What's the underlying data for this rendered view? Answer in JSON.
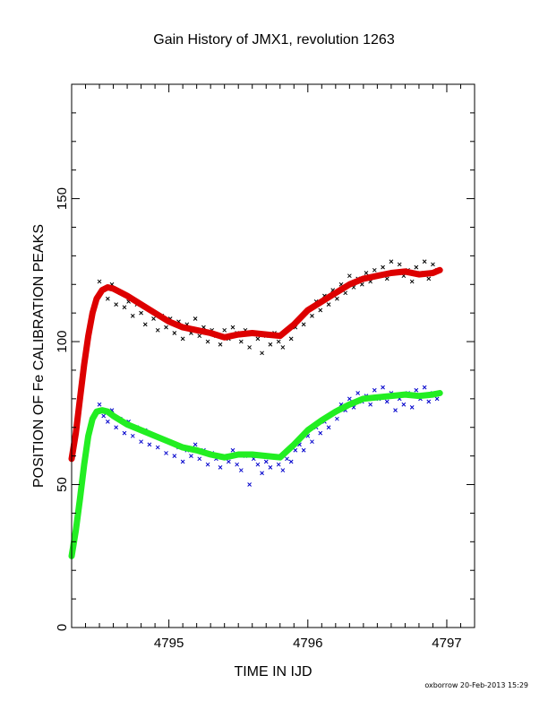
{
  "chart_data": {
    "type": "scatter",
    "title": "Gain History of JMX1, revolution 1263",
    "xlabel": "TIME IN IJD",
    "ylabel": "POSITION OF Fe CALIBRATION PEAKS",
    "xlim": [
      4794.3,
      4797.2
    ],
    "ylim": [
      0,
      190
    ],
    "xticks": [
      4795,
      4796,
      4797
    ],
    "yticks": [
      0,
      50,
      100,
      150
    ],
    "grid": false,
    "series": [
      {
        "color": "#000000",
        "marker": "x",
        "x": [
          4794.5,
          4794.53,
          4794.56,
          4794.59,
          4794.62,
          4794.65,
          4794.68,
          4794.71,
          4794.74,
          4794.77,
          4794.8,
          4794.83,
          4794.86,
          4794.89,
          4794.92,
          4794.95,
          4794.98,
          4795.01,
          4795.04,
          4795.07,
          4795.1,
          4795.13,
          4795.16,
          4795.19,
          4795.22,
          4795.25,
          4795.28,
          4795.31,
          4795.34,
          4795.37,
          4795.4,
          4795.43,
          4795.46,
          4795.49,
          4795.52,
          4795.55,
          4795.58,
          4795.61,
          4795.64,
          4795.67,
          4795.7,
          4795.73,
          4795.76,
          4795.79,
          4795.82,
          4795.85,
          4795.88,
          4795.91,
          4795.94,
          4795.97,
          4796.0,
          4796.03,
          4796.06,
          4796.09,
          4796.12,
          4796.15,
          4796.18,
          4796.21,
          4796.24,
          4796.27,
          4796.3,
          4796.33,
          4796.36,
          4796.39,
          4796.42,
          4796.45,
          4796.48,
          4796.51,
          4796.54,
          4796.57,
          4796.6,
          4796.63,
          4796.66,
          4796.69,
          4796.72,
          4796.75,
          4796.78,
          4796.81,
          4796.84,
          4796.87,
          4796.9,
          4796.93
        ],
        "y": [
          121,
          118,
          115,
          120,
          113,
          117,
          112,
          114,
          109,
          113,
          110,
          106,
          111,
          108,
          104,
          109,
          105,
          108,
          103,
          107,
          101,
          106,
          103,
          108,
          102,
          105,
          100,
          104,
          102,
          99,
          104,
          101,
          105,
          103,
          100,
          104,
          98,
          103,
          101,
          96,
          102,
          99,
          103,
          100,
          98,
          104,
          101,
          105,
          108,
          106,
          111,
          109,
          114,
          111,
          116,
          113,
          118,
          115,
          120,
          117,
          123,
          119,
          122,
          120,
          124,
          121,
          125,
          123,
          126,
          122,
          128,
          124,
          127,
          123,
          125,
          121,
          126,
          124,
          128,
          122,
          127,
          125
        ]
      },
      {
        "color": "#0000cc",
        "marker": "x",
        "x": [
          4794.5,
          4794.53,
          4794.56,
          4794.59,
          4794.62,
          4794.65,
          4794.68,
          4794.71,
          4794.74,
          4794.77,
          4794.8,
          4794.83,
          4794.86,
          4794.89,
          4794.92,
          4794.95,
          4794.98,
          4795.01,
          4795.04,
          4795.07,
          4795.1,
          4795.13,
          4795.16,
          4795.19,
          4795.22,
          4795.25,
          4795.28,
          4795.31,
          4795.34,
          4795.37,
          4795.4,
          4795.43,
          4795.46,
          4795.49,
          4795.52,
          4795.55,
          4795.58,
          4795.61,
          4795.64,
          4795.67,
          4795.7,
          4795.73,
          4795.76,
          4795.79,
          4795.82,
          4795.85,
          4795.88,
          4795.91,
          4795.94,
          4795.97,
          4796.0,
          4796.03,
          4796.06,
          4796.09,
          4796.12,
          4796.15,
          4796.18,
          4796.21,
          4796.24,
          4796.27,
          4796.3,
          4796.33,
          4796.36,
          4796.39,
          4796.42,
          4796.45,
          4796.48,
          4796.51,
          4796.54,
          4796.57,
          4796.6,
          4796.63,
          4796.66,
          4796.69,
          4796.72,
          4796.75,
          4796.78,
          4796.81,
          4796.84,
          4796.87,
          4796.9,
          4796.93
        ],
        "y": [
          78,
          74,
          72,
          76,
          70,
          73,
          68,
          72,
          67,
          70,
          65,
          69,
          64,
          67,
          63,
          66,
          61,
          65,
          60,
          63,
          58,
          62,
          60,
          64,
          59,
          62,
          57,
          61,
          59,
          56,
          60,
          58,
          62,
          57,
          55,
          60,
          50,
          59,
          57,
          54,
          58,
          56,
          60,
          57,
          55,
          59,
          58,
          62,
          64,
          62,
          67,
          65,
          70,
          68,
          72,
          70,
          75,
          73,
          78,
          76,
          80,
          77,
          82,
          79,
          81,
          78,
          83,
          80,
          84,
          79,
          82,
          76,
          80,
          78,
          82,
          77,
          83,
          80,
          84,
          79,
          82,
          80
        ]
      },
      {
        "color": "#dd0000",
        "marker": "line",
        "x": [
          4794.3,
          4794.33,
          4794.36,
          4794.39,
          4794.42,
          4794.45,
          4794.48,
          4794.52,
          4794.56,
          4794.6,
          4794.7,
          4794.8,
          4794.9,
          4795.0,
          4795.1,
          4795.2,
          4795.3,
          4795.4,
          4795.5,
          4795.6,
          4795.7,
          4795.8,
          4795.9,
          4796.0,
          4796.1,
          4796.2,
          4796.3,
          4796.4,
          4796.5,
          4796.6,
          4796.7,
          4796.8,
          4796.9,
          4796.95
        ],
        "y": [
          59,
          68,
          80,
          92,
          102,
          110,
          115,
          118,
          119,
          118.5,
          116,
          113,
          110,
          107,
          105,
          104,
          103,
          101.5,
          102.5,
          103,
          102.5,
          102,
          106,
          111,
          114,
          117,
          120,
          122,
          123,
          124,
          124.5,
          123.5,
          124,
          125
        ]
      },
      {
        "color": "#22ee22",
        "marker": "line",
        "x": [
          4794.3,
          4794.33,
          4794.36,
          4794.39,
          4794.42,
          4794.45,
          4794.48,
          4794.52,
          4794.56,
          4794.6,
          4794.7,
          4794.8,
          4794.9,
          4795.0,
          4795.1,
          4795.2,
          4795.3,
          4795.4,
          4795.5,
          4795.6,
          4795.7,
          4795.8,
          4795.9,
          4796.0,
          4796.1,
          4796.2,
          4796.3,
          4796.4,
          4796.5,
          4796.6,
          4796.7,
          4796.8,
          4796.9,
          4796.95
        ],
        "y": [
          25,
          34,
          45,
          57,
          67,
          73,
          75.5,
          76,
          75.5,
          74,
          71,
          69,
          67,
          65,
          63,
          62,
          60.5,
          59.5,
          60.5,
          60.5,
          60,
          59.5,
          64,
          69,
          72.5,
          75.5,
          78,
          80,
          80.5,
          81,
          81.5,
          81,
          81.5,
          82
        ]
      }
    ]
  },
  "footer": "oxborrow 20-Feb-2013 15:29",
  "colors": {
    "axis": "#000000",
    "black_series": "#000000",
    "blue_series": "#0000cc",
    "red_fit": "#dd0000",
    "green_fit": "#22ee22"
  }
}
